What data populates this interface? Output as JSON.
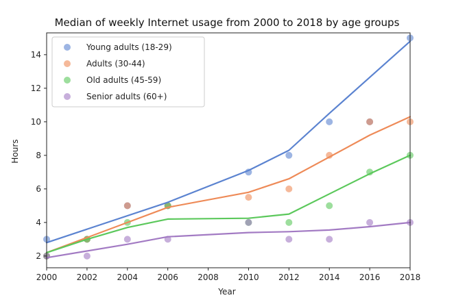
{
  "chart_data": {
    "type": "scatter",
    "title": "Median of weekly Internet usage from 2000 to 2018 by age groups",
    "xlabel": "Year",
    "ylabel": "Hours",
    "xlim": [
      2000,
      2018
    ],
    "ylim": [
      1.3,
      15.3
    ],
    "xticks": [
      2000,
      2002,
      2004,
      2006,
      2008,
      2010,
      2012,
      2014,
      2016,
      2018
    ],
    "yticks": [
      2,
      4,
      6,
      8,
      10,
      12,
      14
    ],
    "grid": false,
    "legend_position": "top-left",
    "series": [
      {
        "name": "Young adults (18-29)",
        "color": "#5b83d0",
        "points": {
          "x": [
            2000,
            2002,
            2004,
            2006,
            2010,
            2012,
            2014,
            2016,
            2018
          ],
          "y": [
            3,
            3,
            5,
            5,
            7,
            8,
            10,
            10,
            15
          ]
        },
        "trend": {
          "x": [
            2000,
            2006,
            2010,
            2012,
            2014,
            2018
          ],
          "y": [
            2.8,
            5.2,
            7.1,
            8.3,
            10.5,
            14.8
          ]
        }
      },
      {
        "name": "Adults (30-44)",
        "color": "#ee8a57",
        "points": {
          "x": [
            2000,
            2002,
            2004,
            2006,
            2010,
            2012,
            2014,
            2016,
            2018
          ],
          "y": [
            2,
            3,
            5,
            5,
            5.5,
            6,
            8,
            10,
            10
          ]
        },
        "trend": {
          "x": [
            2000,
            2002,
            2004,
            2006,
            2010,
            2012,
            2014,
            2016,
            2018
          ],
          "y": [
            2.2,
            3.1,
            4.0,
            4.9,
            5.8,
            6.6,
            7.9,
            9.2,
            10.3
          ]
        }
      },
      {
        "name": "Old adults (45-59)",
        "color": "#5bc85b",
        "points": {
          "x": [
            2000,
            2002,
            2004,
            2006,
            2010,
            2012,
            2014,
            2016,
            2018
          ],
          "y": [
            2,
            3,
            4,
            5,
            4,
            4,
            5,
            7,
            8
          ]
        },
        "trend": {
          "x": [
            2000,
            2002,
            2004,
            2006,
            2010,
            2012,
            2014,
            2016,
            2018
          ],
          "y": [
            2.2,
            3.0,
            3.7,
            4.2,
            4.25,
            4.5,
            5.7,
            6.9,
            8.0
          ]
        }
      },
      {
        "name": "Senior adults (60+)",
        "color": "#a27ac3",
        "points": {
          "x": [
            2000,
            2002,
            2004,
            2006,
            2010,
            2012,
            2014,
            2016,
            2018
          ],
          "y": [
            2,
            2,
            3,
            3,
            4,
            3,
            3,
            4,
            4
          ]
        },
        "trend": {
          "x": [
            2000,
            2002,
            2004,
            2006,
            2010,
            2012,
            2014,
            2016,
            2018
          ],
          "y": [
            1.9,
            2.3,
            2.7,
            3.15,
            3.4,
            3.45,
            3.55,
            3.75,
            4.0
          ]
        }
      }
    ]
  }
}
